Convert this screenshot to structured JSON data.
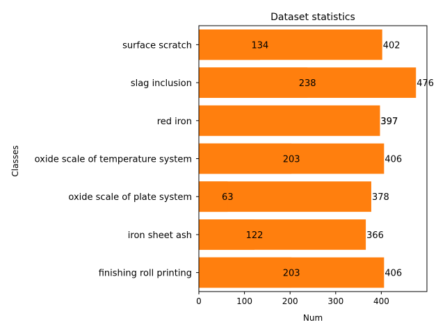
{
  "chart_data": {
    "type": "bar",
    "orientation": "horizontal",
    "title": "Dataset statistics",
    "xlabel": "Num",
    "ylabel": "Classes",
    "categories": [
      "finishing roll printing",
      "iron sheet ash",
      "oxide scale of plate system",
      "oxide scale of temperature system",
      "red iron",
      "slag inclusion",
      "surface scratch"
    ],
    "series": [
      {
        "values": [
          406,
          366,
          378,
          406,
          397,
          476,
          402
        ],
        "color": "#ff7f0e"
      },
      {
        "values": [
          203,
          122,
          63,
          203,
          397,
          238,
          134
        ],
        "color": "#ff7f0e"
      }
    ],
    "bar_labels_end": [
      "406",
      "366",
      "378",
      "406",
      "397",
      "476",
      "402"
    ],
    "bar_labels_inner": [
      "203",
      "122",
      "63",
      "203",
      "397",
      "238",
      "134"
    ],
    "xlim": [
      0,
      500
    ],
    "xticks": [
      0,
      100,
      200,
      300,
      400
    ],
    "grid": false,
    "legend": false
  }
}
